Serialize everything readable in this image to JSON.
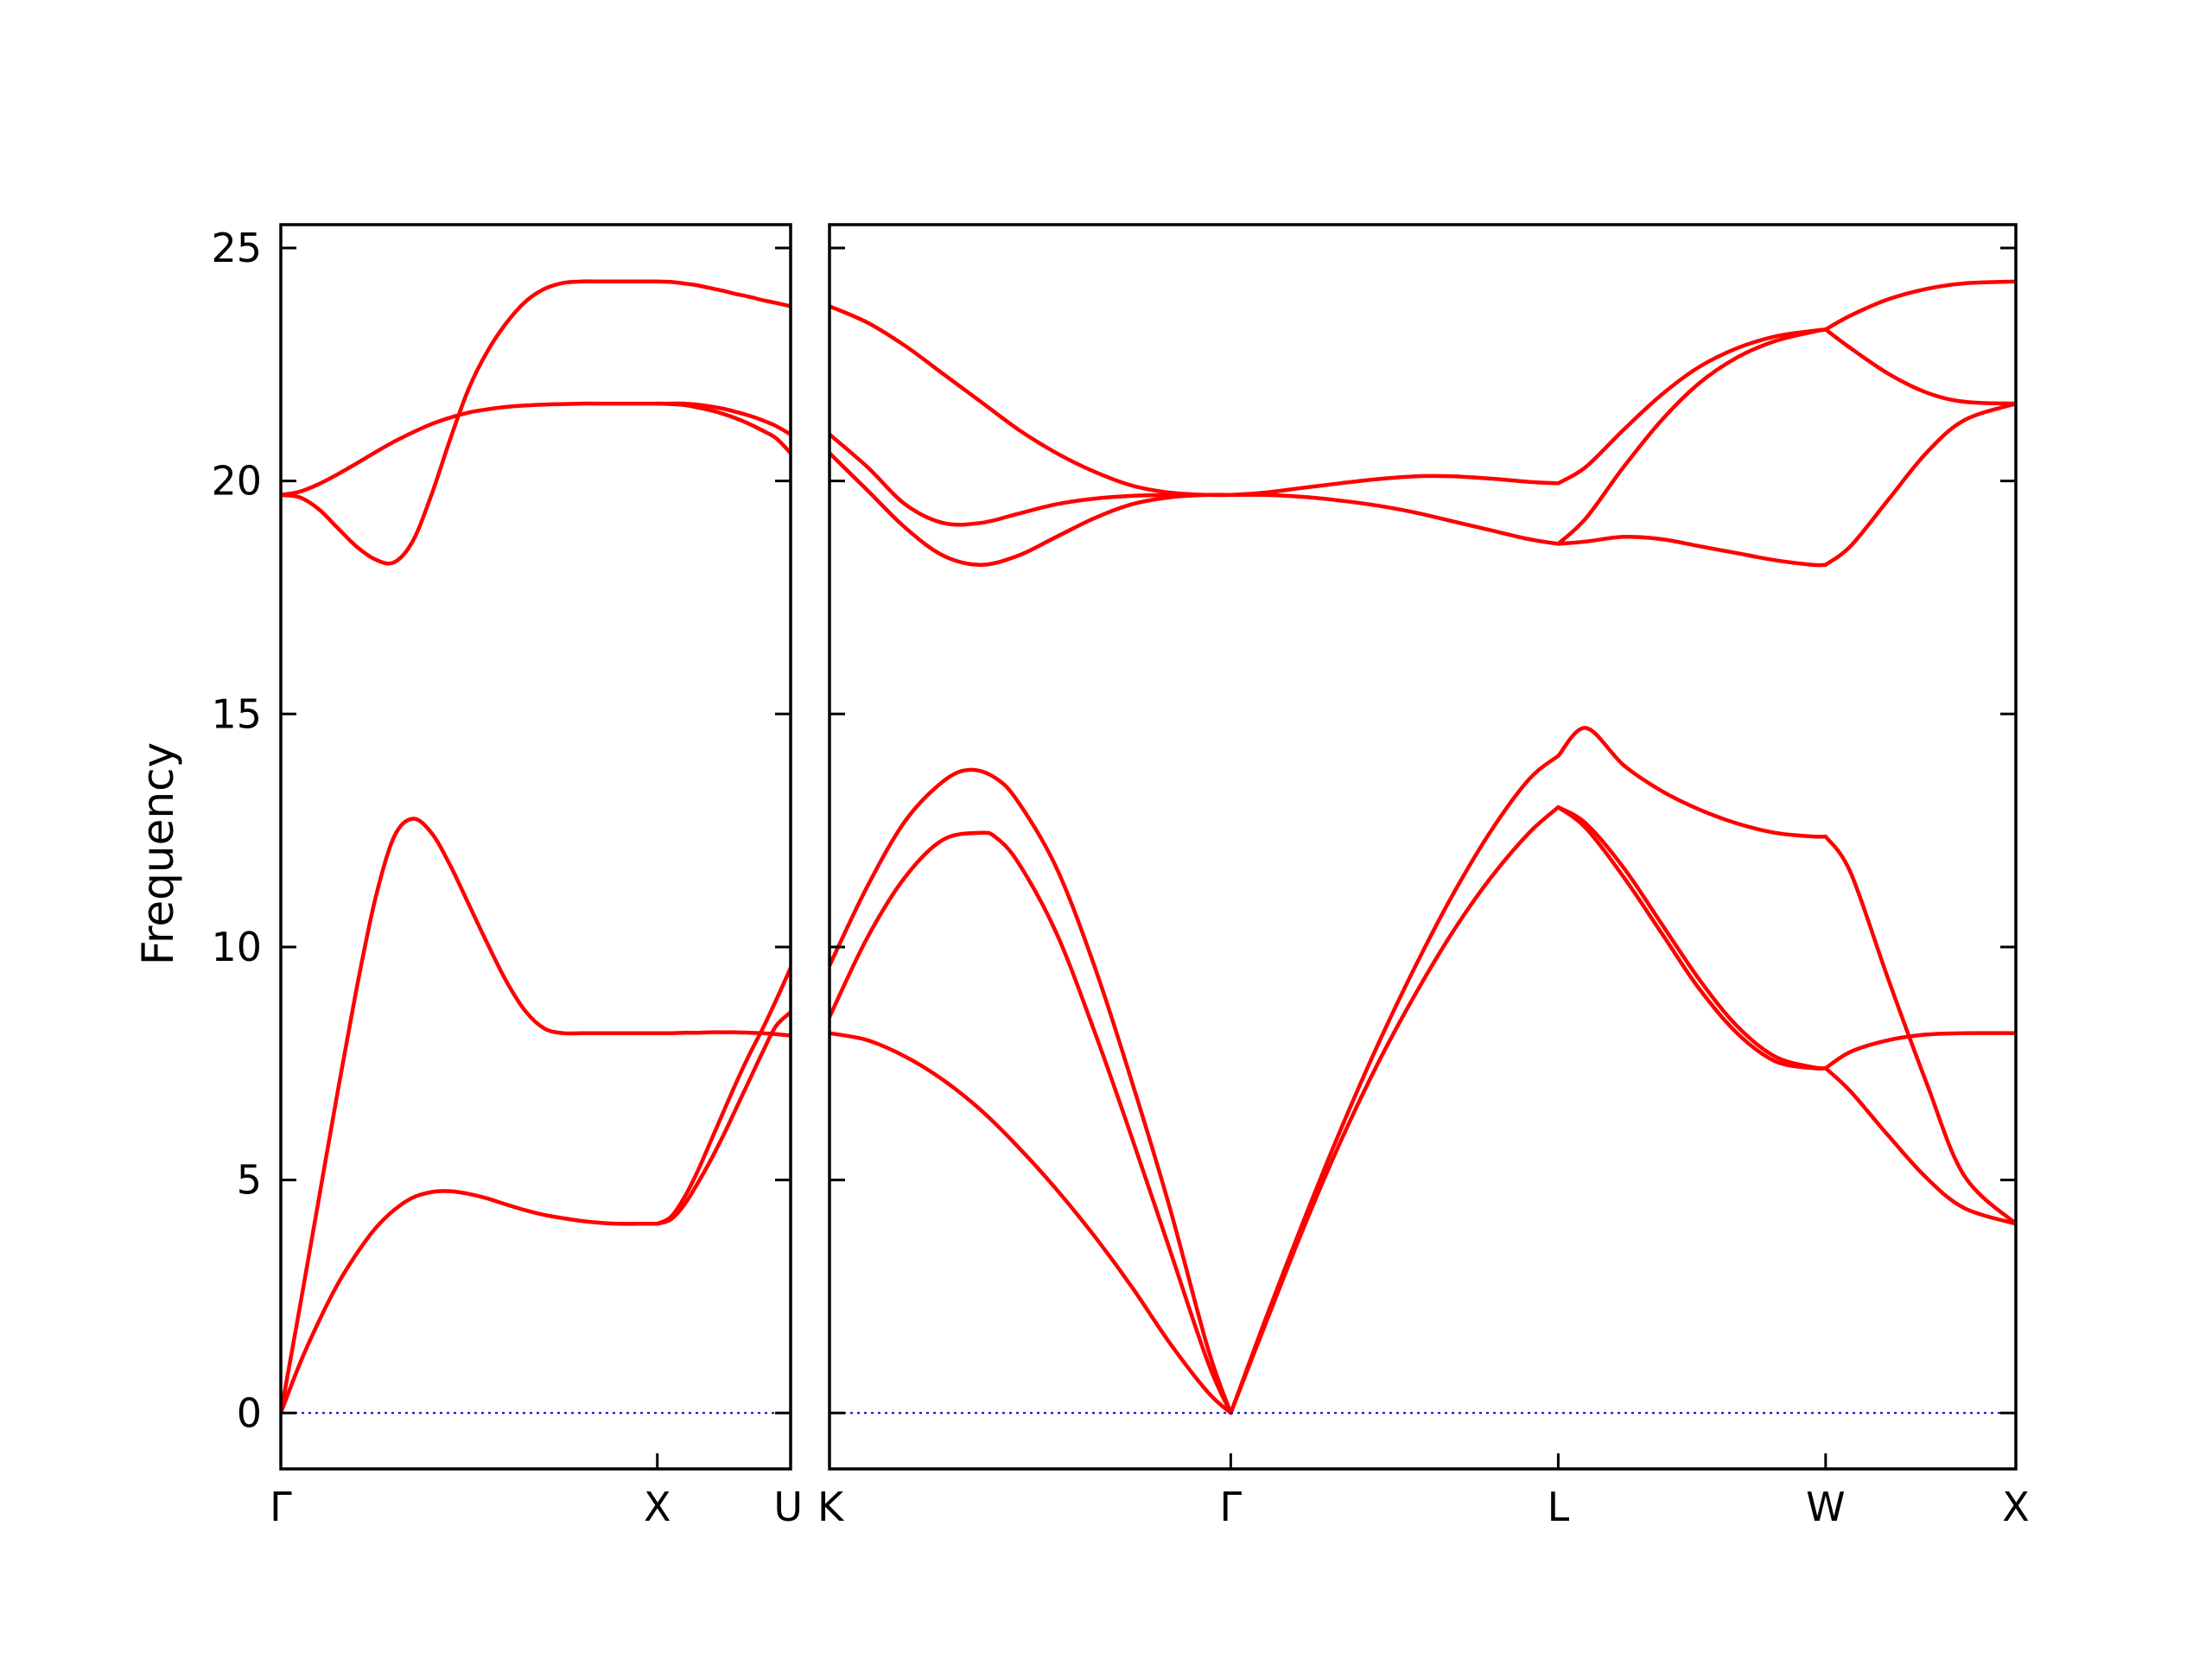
{
  "chart_data": {
    "type": "line",
    "ylabel": "Frequency",
    "ylim": [
      -1.2,
      25.5
    ],
    "yticks": [
      0,
      5,
      10,
      15,
      20,
      25
    ],
    "grid": false,
    "colors": {
      "bands": "#ff0000",
      "zero_line": "#0000cc",
      "frame": "#000000"
    },
    "panels": [
      {
        "name": "Γ-X-U",
        "xlim": [
          0,
          1.354
        ],
        "ticks": [
          {
            "x": 0.0,
            "label": "Γ"
          },
          {
            "x": 1.0,
            "label": "X"
          },
          {
            "x": 1.354,
            "label": "U"
          }
        ],
        "series": [
          {
            "x": [
              0,
              0.05,
              0.1,
              0.15,
              0.2,
              0.25,
              0.3,
              0.35,
              0.4,
              0.45,
              0.5,
              0.55,
              0.6,
              0.65,
              0.7,
              0.75,
              0.8,
              0.85,
              0.9,
              0.95,
              1.0
            ],
            "y": [
              0,
              1.05,
              1.95,
              2.75,
              3.4,
              3.95,
              4.35,
              4.62,
              4.74,
              4.76,
              4.7,
              4.6,
              4.47,
              4.35,
              4.25,
              4.18,
              4.12,
              4.08,
              4.06,
              4.06,
              4.06
            ]
          },
          {
            "x": [
              0,
              0.05,
              0.1,
              0.15,
              0.2,
              0.25,
              0.3,
              0.35,
              0.4,
              0.45,
              0.5,
              0.55,
              0.6,
              0.65,
              0.7,
              0.75,
              0.8,
              0.85,
              0.9,
              0.95,
              1.0
            ],
            "y": [
              0,
              2.25,
              4.55,
              6.85,
              9.05,
              11.0,
              12.35,
              12.75,
              12.45,
              11.75,
              10.9,
              10.05,
              9.25,
              8.62,
              8.25,
              8.15,
              8.15,
              8.15,
              8.15,
              8.15,
              8.15
            ]
          },
          {
            "x": [
              0,
              0.05,
              0.1,
              0.15,
              0.2,
              0.25,
              0.3,
              0.35,
              0.4,
              0.45,
              0.5,
              0.55,
              0.6,
              0.65,
              0.7,
              0.75,
              0.8,
              0.85,
              0.9,
              0.95,
              1.0
            ],
            "y": [
              19.7,
              19.65,
              19.4,
              19.0,
              18.6,
              18.32,
              18.25,
              18.7,
              19.7,
              20.9,
              22.0,
              22.8,
              23.4,
              23.85,
              24.12,
              24.25,
              24.28,
              24.28,
              24.28,
              24.28,
              24.28
            ]
          },
          {
            "x": [
              0,
              0.05,
              0.1,
              0.15,
              0.2,
              0.25,
              0.3,
              0.35,
              0.4,
              0.45,
              0.5,
              0.55,
              0.6,
              0.65,
              0.7,
              0.75,
              0.8,
              0.85,
              0.9,
              0.95,
              1.0
            ],
            "y": [
              19.7,
              19.77,
              19.93,
              20.14,
              20.37,
              20.61,
              20.84,
              21.04,
              21.22,
              21.36,
              21.47,
              21.54,
              21.59,
              21.62,
              21.64,
              21.65,
              21.66,
              21.66,
              21.66,
              21.66,
              21.66
            ]
          },
          {
            "x": [
              1.0,
              1.035,
              1.07,
              1.105,
              1.14,
              1.175,
              1.21,
              1.245,
              1.28,
              1.315,
              1.354
            ],
            "y": [
              4.06,
              4.2,
              4.6,
              5.15,
              5.8,
              6.45,
              7.1,
              7.7,
              8.25,
              8.85,
              9.55
            ]
          },
          {
            "x": [
              1.0,
              1.035,
              1.07,
              1.105,
              1.14,
              1.175,
              1.21,
              1.245,
              1.28,
              1.315,
              1.354
            ],
            "y": [
              4.06,
              4.15,
              4.45,
              4.9,
              5.4,
              5.95,
              6.55,
              7.15,
              7.75,
              8.3,
              8.6
            ]
          },
          {
            "x": [
              1.0,
              1.035,
              1.07,
              1.105,
              1.14,
              1.175,
              1.21,
              1.245,
              1.28,
              1.315,
              1.354
            ],
            "y": [
              8.15,
              8.15,
              8.16,
              8.16,
              8.17,
              8.17,
              8.17,
              8.16,
              8.15,
              8.13,
              8.1
            ]
          },
          {
            "x": [
              1.0,
              1.035,
              1.07,
              1.105,
              1.14,
              1.175,
              1.21,
              1.245,
              1.28,
              1.315,
              1.354
            ],
            "y": [
              24.28,
              24.27,
              24.24,
              24.2,
              24.14,
              24.08,
              24.01,
              23.95,
              23.88,
              23.82,
              23.75
            ]
          },
          {
            "x": [
              1.0,
              1.035,
              1.07,
              1.105,
              1.14,
              1.175,
              1.21,
              1.245,
              1.28,
              1.315,
              1.354
            ],
            "y": [
              21.66,
              21.65,
              21.63,
              21.58,
              21.52,
              21.44,
              21.34,
              21.22,
              21.08,
              20.92,
              20.6
            ]
          },
          {
            "x": [
              1.0,
              1.035,
              1.07,
              1.105,
              1.14,
              1.175,
              1.21,
              1.245,
              1.28,
              1.315,
              1.354
            ],
            "y": [
              21.66,
              21.66,
              21.66,
              21.64,
              21.6,
              21.55,
              21.48,
              21.4,
              21.3,
              21.18,
              21.0
            ]
          },
          {
            "x": [
              0,
              1.354
            ],
            "y": [
              0,
              0
            ],
            "zero_line": true
          }
        ]
      },
      {
        "name": "K-Γ-L-W-X",
        "xlim": [
          0,
          3.137
        ],
        "ticks": [
          {
            "x": 0.0,
            "label": "K"
          },
          {
            "x": 1.061,
            "label": "Γ"
          },
          {
            "x": 1.927,
            "label": "L"
          },
          {
            "x": 2.634,
            "label": "W"
          },
          {
            "x": 3.137,
            "label": "X"
          }
        ],
        "series": [
          {
            "x": [
              0,
              0.1,
              0.2,
              0.3,
              0.4,
              0.5,
              0.6,
              0.7,
              0.8,
              0.9,
              1.0,
              1.061
            ],
            "y": [
              8.15,
              8.0,
              7.65,
              7.15,
              6.5,
              5.7,
              4.8,
              3.8,
              2.7,
              1.5,
              0.45,
              0
            ]
          },
          {
            "x": [
              0,
              0.1,
              0.2,
              0.3,
              0.4,
              0.44,
              0.5,
              0.6,
              0.7,
              0.8,
              0.9,
              1.0,
              1.061
            ],
            "y": [
              8.5,
              10.2,
              11.5,
              12.3,
              12.45,
              12.35,
              11.8,
              10.3,
              8.2,
              5.9,
              3.5,
              1.1,
              0
            ]
          },
          {
            "x": [
              0,
              0.1,
              0.2,
              0.3,
              0.37,
              0.44,
              0.5,
              0.6,
              0.7,
              0.8,
              0.9,
              1.0,
              1.061
            ],
            "y": [
              9.6,
              11.3,
              12.7,
              13.55,
              13.8,
              13.62,
              13.1,
              11.7,
              9.6,
              7.1,
              4.4,
              1.4,
              0
            ]
          },
          {
            "x": [
              0,
              0.1,
              0.2,
              0.3,
              0.4,
              0.5,
              0.6,
              0.7,
              0.8,
              0.9,
              1.0,
              1.061
            ],
            "y": [
              20.6,
              19.8,
              19.0,
              18.4,
              18.2,
              18.4,
              18.8,
              19.2,
              19.5,
              19.65,
              19.7,
              19.7
            ]
          },
          {
            "x": [
              0,
              0.1,
              0.2,
              0.3,
              0.4,
              0.5,
              0.6,
              0.7,
              0.8,
              0.9,
              1.0,
              1.061
            ],
            "y": [
              21.0,
              20.3,
              19.5,
              19.1,
              19.1,
              19.3,
              19.5,
              19.62,
              19.68,
              19.7,
              19.7,
              19.7
            ]
          },
          {
            "x": [
              0,
              0.1,
              0.2,
              0.3,
              0.4,
              0.5,
              0.6,
              0.7,
              0.8,
              0.9,
              1.0,
              1.061
            ],
            "y": [
              23.75,
              23.4,
              22.9,
              22.3,
              21.7,
              21.1,
              20.6,
              20.2,
              19.9,
              19.75,
              19.7,
              19.7
            ]
          },
          {
            "x": [
              1.061,
              1.15,
              1.25,
              1.35,
              1.45,
              1.55,
              1.65,
              1.75,
              1.85,
              1.927
            ],
            "y": [
              0,
              1.85,
              3.9,
              5.8,
              7.5,
              9.0,
              10.35,
              11.5,
              12.45,
              13.0
            ]
          },
          {
            "x": [
              1.061,
              1.15,
              1.25,
              1.35,
              1.45,
              1.55,
              1.65,
              1.75,
              1.85,
              1.927
            ],
            "y": [
              0,
              1.95,
              4.05,
              6.05,
              7.9,
              9.6,
              11.15,
              12.5,
              13.6,
              14.1
            ]
          },
          {
            "x": [
              1.061,
              1.15,
              1.25,
              1.35,
              1.45,
              1.55,
              1.65,
              1.75,
              1.85,
              1.927
            ],
            "y": [
              19.7,
              19.7,
              19.66,
              19.58,
              19.47,
              19.32,
              19.13,
              18.94,
              18.75,
              18.65
            ]
          },
          {
            "x": [
              1.061,
              1.15,
              1.25,
              1.35,
              1.45,
              1.55,
              1.65,
              1.75,
              1.85,
              1.927
            ],
            "y": [
              19.7,
              19.75,
              19.85,
              19.95,
              20.04,
              20.1,
              20.1,
              20.05,
              19.98,
              19.95
            ]
          },
          {
            "x": [
              1.927,
              2.0,
              2.1,
              2.2,
              2.3,
              2.4,
              2.5,
              2.6,
              2.634
            ],
            "y": [
              13.0,
              12.55,
              11.5,
              10.3,
              9.1,
              8.15,
              7.55,
              7.4,
              7.4
            ]
          },
          {
            "x": [
              1.927,
              2.0,
              2.1,
              2.2,
              2.3,
              2.4,
              2.5,
              2.6,
              2.634
            ],
            "y": [
              13.0,
              12.65,
              11.7,
              10.5,
              9.3,
              8.3,
              7.65,
              7.42,
              7.4
            ]
          },
          {
            "x": [
              1.927,
              2.0,
              2.1,
              2.2,
              2.3,
              2.4,
              2.5,
              2.6,
              2.634
            ],
            "y": [
              14.1,
              14.7,
              13.9,
              13.35,
              12.95,
              12.65,
              12.45,
              12.37,
              12.37
            ]
          },
          {
            "x": [
              1.927,
              2.0,
              2.1,
              2.2,
              2.3,
              2.4,
              2.5,
              2.6,
              2.634
            ],
            "y": [
              18.65,
              18.7,
              18.8,
              18.75,
              18.6,
              18.45,
              18.3,
              18.2,
              18.2
            ]
          },
          {
            "x": [
              1.927,
              2.0,
              2.1,
              2.2,
              2.3,
              2.4,
              2.5,
              2.6,
              2.634
            ],
            "y": [
              18.65,
              19.2,
              20.3,
              21.3,
              22.1,
              22.65,
              23.0,
              23.2,
              23.25
            ]
          },
          {
            "x": [
              1.927,
              2.0,
              2.1,
              2.2,
              2.3,
              2.4,
              2.5,
              2.6,
              2.634
            ],
            "y": [
              19.95,
              20.3,
              21.1,
              21.85,
              22.45,
              22.85,
              23.1,
              23.22,
              23.25
            ]
          },
          {
            "x": [
              2.634,
              2.7,
              2.8,
              2.9,
              3.0,
              3.137
            ],
            "y": [
              7.4,
              7.75,
              8.0,
              8.12,
              8.15,
              8.15
            ]
          },
          {
            "x": [
              2.634,
              2.7,
              2.8,
              2.9,
              3.0,
              3.137
            ],
            "y": [
              7.4,
              6.9,
              5.95,
              5.05,
              4.4,
              4.06
            ]
          },
          {
            "x": [
              2.634,
              2.7,
              2.8,
              2.9,
              3.0,
              3.137
            ],
            "y": [
              12.37,
              11.6,
              9.3,
              7.1,
              5.1,
              4.06
            ]
          },
          {
            "x": [
              2.634,
              2.7,
              2.8,
              2.9,
              3.0,
              3.137
            ],
            "y": [
              18.2,
              18.6,
              19.6,
              20.6,
              21.3,
              21.66
            ]
          },
          {
            "x": [
              2.634,
              2.7,
              2.8,
              2.9,
              3.0,
              3.137
            ],
            "y": [
              23.25,
              22.85,
              22.3,
              21.9,
              21.7,
              21.66
            ]
          },
          {
            "x": [
              2.634,
              2.7,
              2.8,
              2.9,
              3.0,
              3.137
            ],
            "y": [
              23.25,
              23.55,
              23.9,
              24.12,
              24.24,
              24.28
            ]
          },
          {
            "x": [
              0,
              3.137
            ],
            "y": [
              0,
              0
            ],
            "zero_line": true
          }
        ]
      }
    ]
  }
}
